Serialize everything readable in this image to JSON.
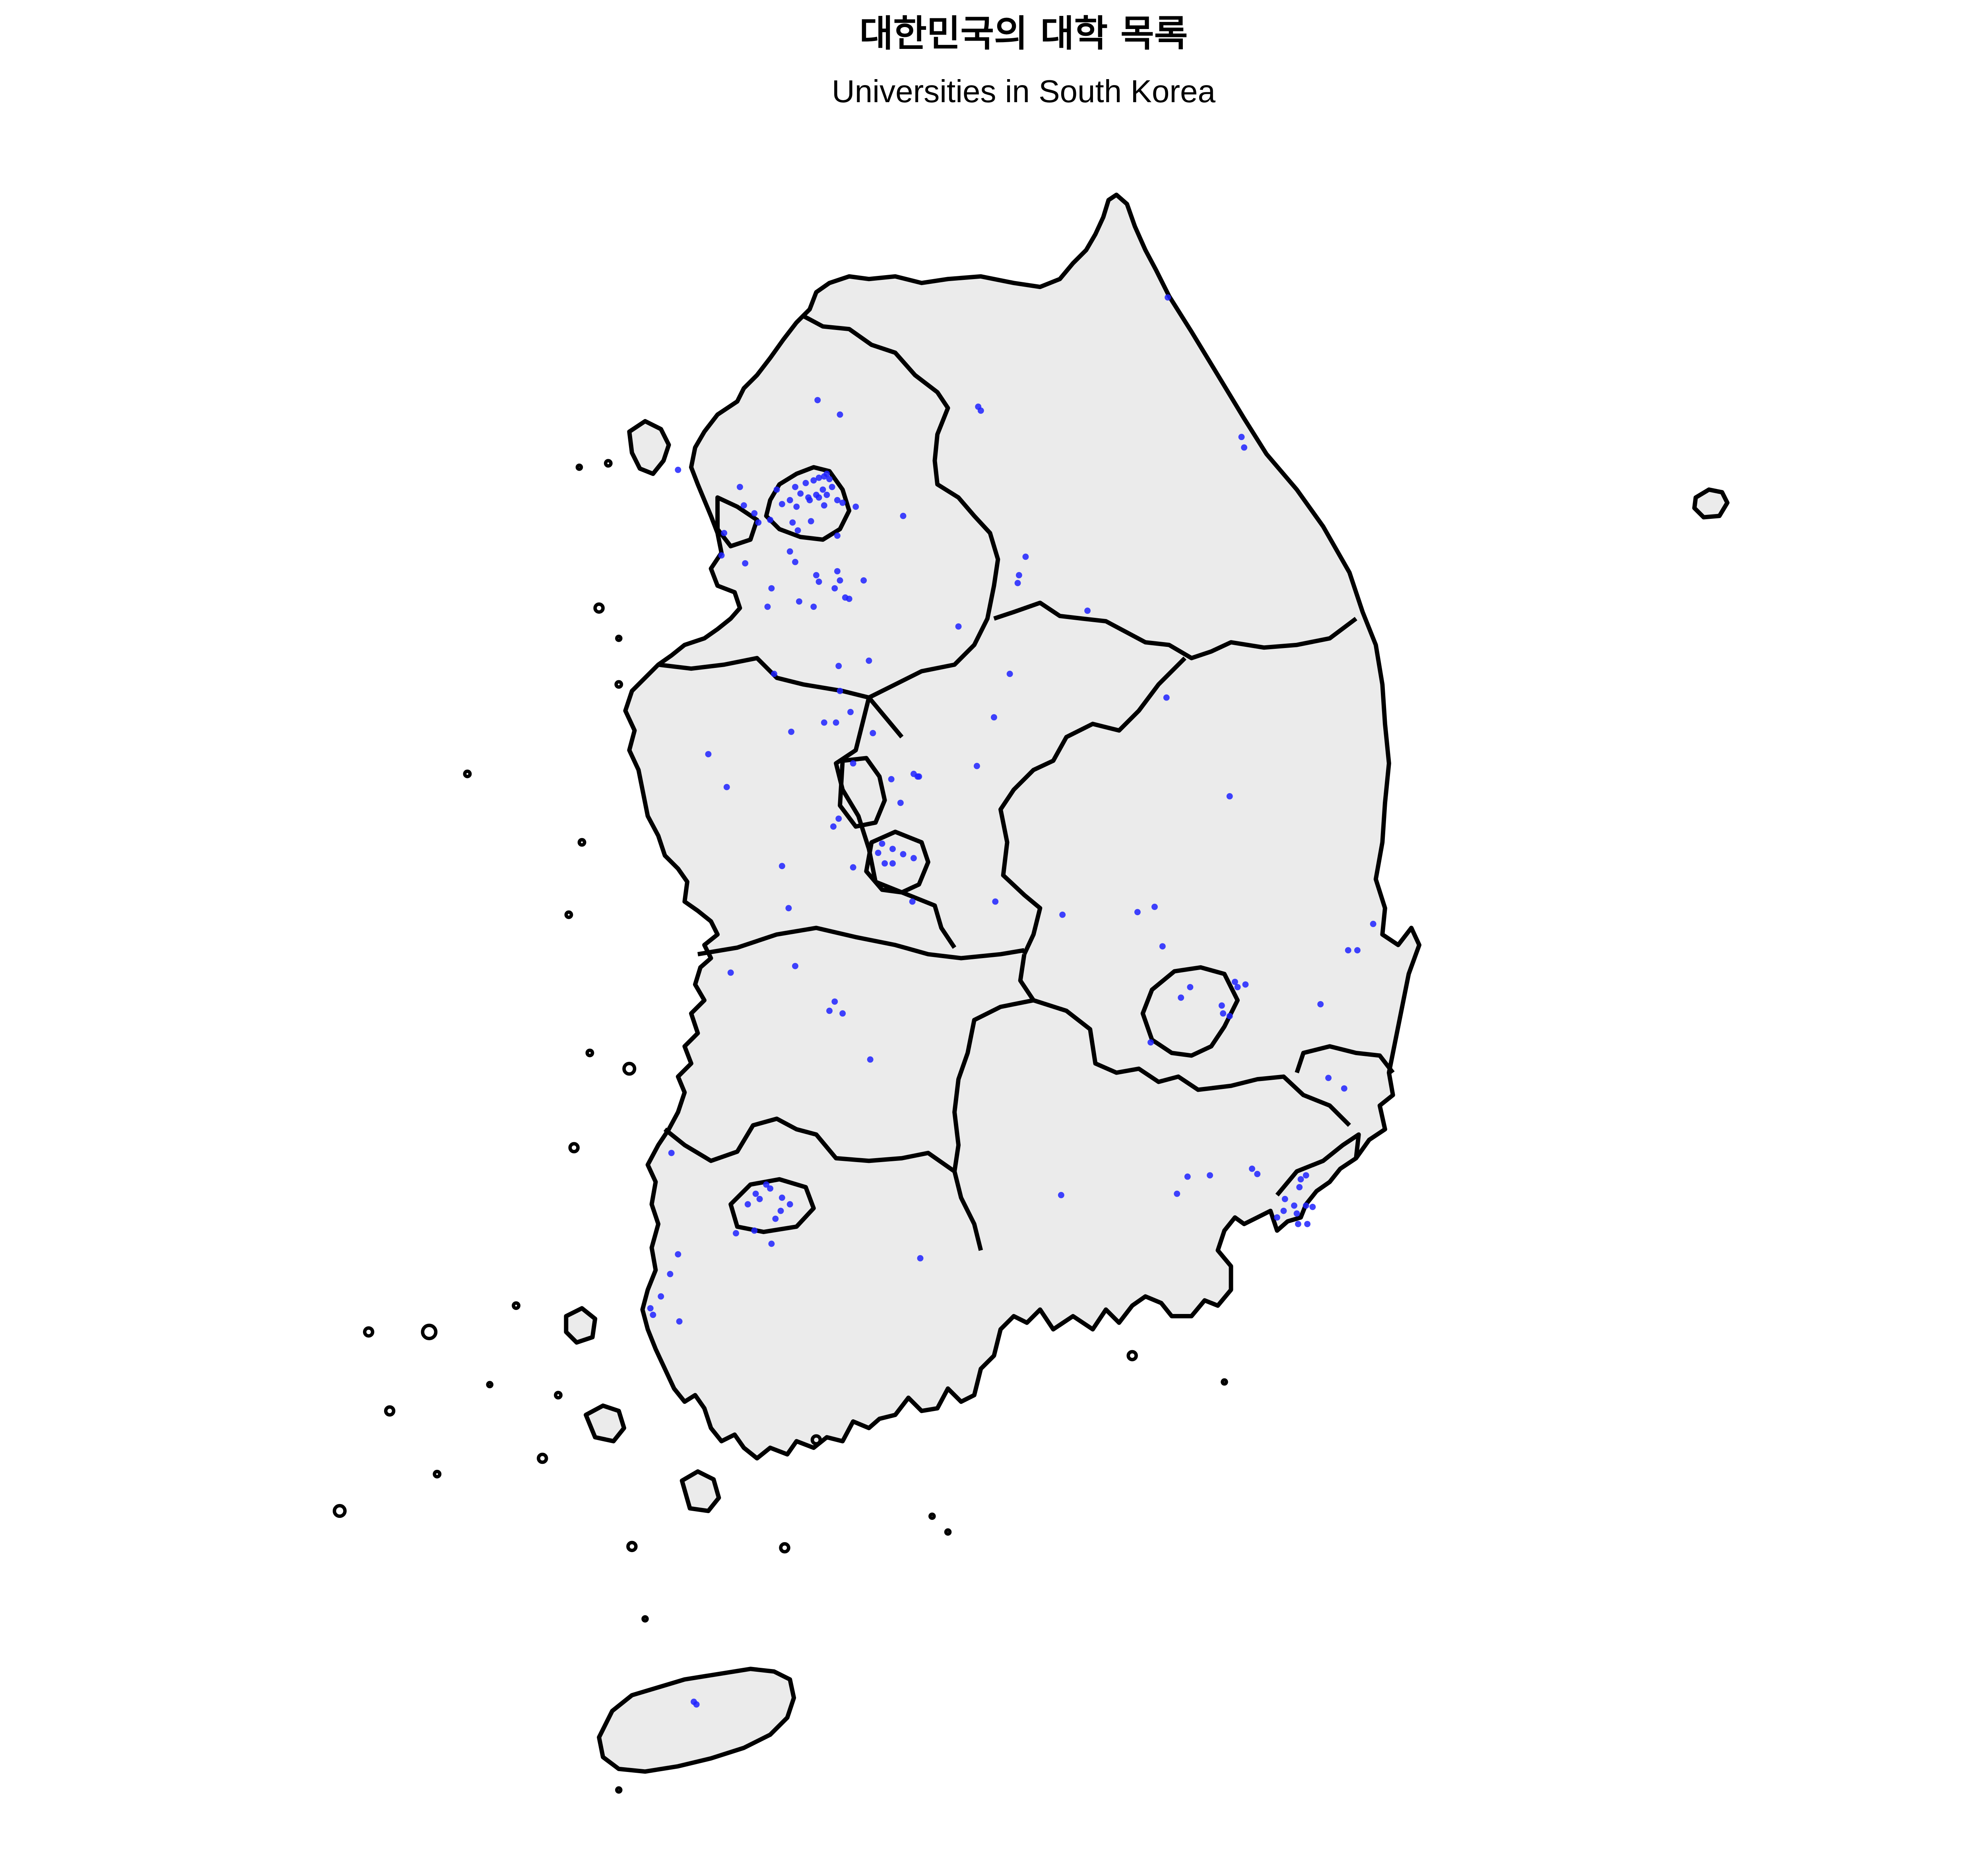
{
  "map": {
    "title": "대한민국의 대학 목록",
    "subtitle": "Universities in South Korea",
    "colors": {
      "land": "#ebebeb",
      "border": "#000000",
      "marker": "#1f22ff",
      "background": "#ffffff"
    },
    "marker_layer": "universities",
    "marker_shape": "circle"
  }
}
